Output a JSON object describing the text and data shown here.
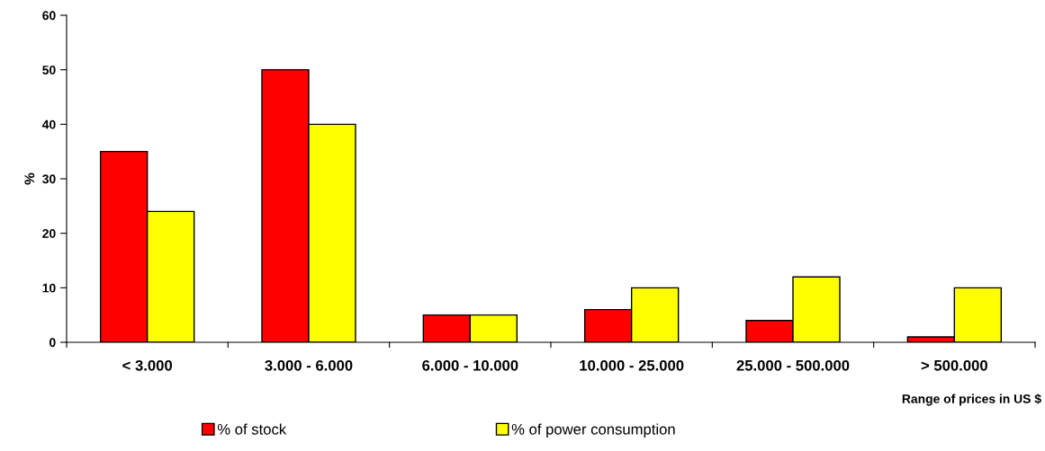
{
  "chart_data": {
    "type": "bar",
    "xlabel": "Range of prices in US $",
    "ylabel": "%",
    "categories": [
      "< 3.000",
      "3.000 - 6.000",
      "6.000 - 10.000",
      "10.000 - 25.000",
      "25.000 - 500.000",
      "> 500.000"
    ],
    "series": [
      {
        "name": "% of stock",
        "color": "#ff0000",
        "values": [
          35,
          50,
          5,
          6,
          4,
          1
        ]
      },
      {
        "name": "% of power consumption",
        "color": "#ffff00",
        "values": [
          24,
          40,
          5,
          10,
          12,
          10
        ]
      }
    ],
    "ylim": [
      0,
      60
    ],
    "yticks": [
      0,
      10,
      20,
      30,
      40,
      50,
      60
    ],
    "grid": false,
    "legend": "bottom"
  }
}
